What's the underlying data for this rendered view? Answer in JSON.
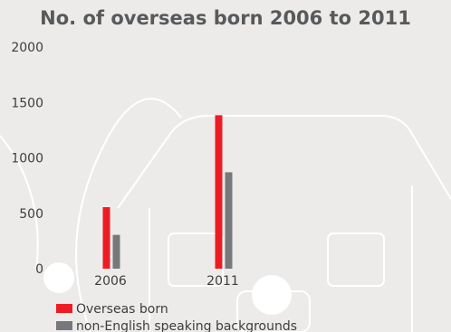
{
  "chart_data": {
    "type": "bar",
    "title": "No. of overseas born 2006 to 2011",
    "xlabel": "",
    "ylabel": "",
    "ylim": [
      0,
      2000
    ],
    "yticks": [
      0,
      500,
      1000,
      1500,
      2000
    ],
    "categories": [
      "2006",
      "2011"
    ],
    "series": [
      {
        "name": "Overseas born",
        "values": [
          555,
          1385
        ]
      },
      {
        "name": "non-English speaking backgrounds",
        "values": [
          305,
          870
        ]
      }
    ],
    "grid": false,
    "legend_position": "bottom-left",
    "colors": {
      "series": [
        "#ed1c24",
        "#77787b"
      ],
      "background": "#ecebe9",
      "decoration": "#ffffff",
      "text": "#3d3d3d",
      "title": "#58595b"
    }
  }
}
